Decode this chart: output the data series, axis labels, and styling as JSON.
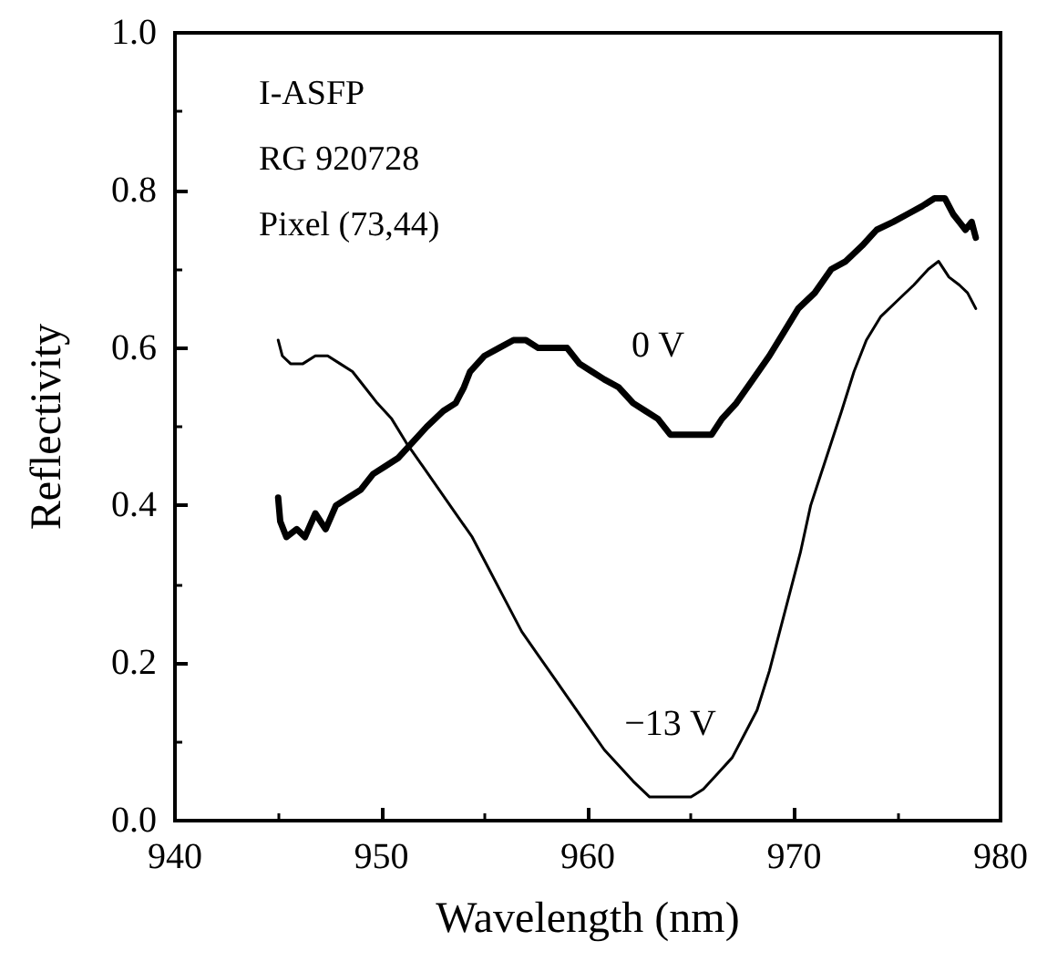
{
  "chart_data": {
    "type": "line",
    "xlabel": "Wavelength (nm)",
    "ylabel": "Reflectivity",
    "annotations": [
      "I-ASFP",
      "RG 920728",
      "Pixel (73,44)"
    ],
    "xlim": [
      940,
      980
    ],
    "xticks": [
      940,
      950,
      960,
      970,
      980
    ],
    "ylim": [
      0,
      1
    ],
    "yticks": [
      {
        "value": 0,
        "label": "0.0"
      },
      0.2,
      0.4,
      0.6,
      0.8,
      {
        "value": 1,
        "label": "1.0"
      }
    ],
    "grid": false,
    "marker": "none",
    "line_style": "solid",
    "series": [
      {
        "name": "0 V",
        "color": "#000000",
        "x": [
          945,
          945.1,
          945.4,
          945.9,
          946.3,
          946.8,
          947.3,
          947.8,
          948.4,
          949,
          949.6,
          950.2,
          950.8,
          951.5,
          952.2,
          953,
          953.6,
          954,
          954.3,
          955,
          955.7,
          956.4,
          957,
          957.6,
          958.3,
          959,
          959.6,
          960.2,
          960.8,
          961.5,
          962.2,
          962.8,
          963.4,
          964,
          965,
          966,
          966.5,
          967.2,
          968,
          968.8,
          969.5,
          970.2,
          971,
          971.8,
          972.5,
          973.3,
          974,
          974.8,
          975.5,
          976.2,
          976.8,
          977.3,
          977.7,
          978,
          978.3,
          978.6,
          978.8
        ],
        "values": [
          0.41,
          0.38,
          0.36,
          0.37,
          0.36,
          0.39,
          0.37,
          0.4,
          0.41,
          0.42,
          0.44,
          0.45,
          0.46,
          0.48,
          0.5,
          0.52,
          0.53,
          0.55,
          0.57,
          0.59,
          0.6,
          0.61,
          0.61,
          0.6,
          0.6,
          0.6,
          0.58,
          0.57,
          0.56,
          0.55,
          0.53,
          0.52,
          0.51,
          0.49,
          0.49,
          0.49,
          0.51,
          0.53,
          0.56,
          0.59,
          0.62,
          0.65,
          0.67,
          0.7,
          0.71,
          0.73,
          0.75,
          0.76,
          0.77,
          0.78,
          0.79,
          0.79,
          0.77,
          0.76,
          0.75,
          0.76,
          0.74
        ]
      },
      {
        "name": "−13 V",
        "color": "#000000",
        "x": [
          945,
          945.2,
          945.6,
          946.2,
          946.8,
          947.4,
          948,
          948.6,
          949.2,
          949.8,
          950.5,
          951.2,
          952,
          952.8,
          953.6,
          954.4,
          955.2,
          956,
          956.8,
          957.6,
          958.4,
          959.2,
          960,
          960.8,
          961.5,
          962.2,
          963,
          964,
          965,
          965.6,
          966.3,
          967,
          967.6,
          968.2,
          968.8,
          969.3,
          969.8,
          970.3,
          970.8,
          971.3,
          971.8,
          972.3,
          972.9,
          973.5,
          974.2,
          975,
          975.8,
          976.5,
          977,
          977.5,
          978,
          978.4,
          978.8
        ],
        "values": [
          0.61,
          0.59,
          0.58,
          0.58,
          0.59,
          0.59,
          0.58,
          0.57,
          0.55,
          0.53,
          0.51,
          0.48,
          0.45,
          0.42,
          0.39,
          0.36,
          0.32,
          0.28,
          0.24,
          0.21,
          0.18,
          0.15,
          0.12,
          0.09,
          0.07,
          0.05,
          0.03,
          0.03,
          0.03,
          0.04,
          0.06,
          0.08,
          0.11,
          0.14,
          0.19,
          0.24,
          0.29,
          0.34,
          0.4,
          0.44,
          0.48,
          0.52,
          0.57,
          0.61,
          0.64,
          0.66,
          0.68,
          0.7,
          0.71,
          0.69,
          0.68,
          0.67,
          0.65
        ]
      }
    ]
  }
}
